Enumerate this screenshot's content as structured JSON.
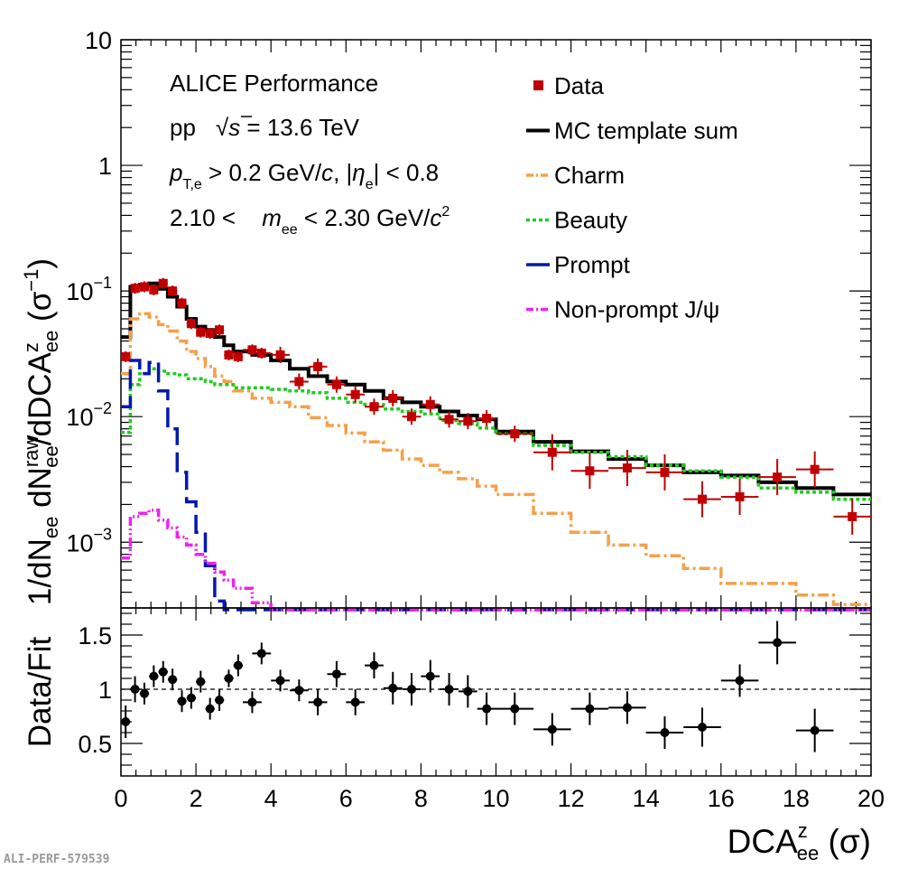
{
  "footer_label": "ALI-PERF-579539",
  "chart_data": [
    {
      "type": "histogram",
      "panel": "top",
      "yscale": "log",
      "xlim": [
        0,
        20
      ],
      "ylim": [
        0.0003,
        10
      ],
      "ylabel": {
        "base": "1/dN",
        "sub1": "ee",
        "mid": " dN",
        "sup2": "raw",
        "sub2": "ee",
        "tail": "/dDCA",
        "sup3": "z",
        "sub3": "ee",
        "unit": " (σ",
        "unit_sup": "−1",
        "unit_end": ")"
      },
      "yticks": [
        {
          "v": 10,
          "base": "10",
          "sup": ""
        },
        {
          "v": 1,
          "base": "1",
          "sup": ""
        },
        {
          "v": 0.1,
          "base": "10",
          "sup": "−1"
        },
        {
          "v": 0.01,
          "base": "10",
          "sup": "−2"
        },
        {
          "v": 0.001,
          "base": "10",
          "sup": "−3"
        }
      ],
      "annotations": {
        "line1": "ALICE Performance",
        "line2": {
          "system": "pp",
          "sqrt": "√",
          "s": "s",
          "energy": " = 13.6 TeV"
        },
        "line3": {
          "p": "p",
          "sub": "T,e",
          "cut1": " > 0.2 GeV/",
          "c": "c",
          "cut2": ", |",
          "eta": "η",
          "eta_sub": "e",
          "cut3": "| < 0.8"
        },
        "line4": {
          "lo": "2.10 < ",
          "m": "m",
          "m_sub": "ee",
          "hi": " < 2.30 GeV/",
          "c": "c",
          "c_sup": "2"
        }
      },
      "legend_position": "top-right",
      "series": [
        {
          "name": "Data",
          "style": "markers",
          "color": "#c00000",
          "points": [
            [
              0.125,
              0.125,
              0.03
            ],
            [
              0.375,
              0.125,
              0.105
            ],
            [
              0.625,
              0.125,
              0.108
            ],
            [
              0.875,
              0.125,
              0.102
            ],
            [
              1.125,
              0.125,
              0.115
            ],
            [
              1.375,
              0.125,
              0.1
            ],
            [
              1.625,
              0.125,
              0.08
            ],
            [
              1.875,
              0.125,
              0.055
            ],
            [
              2.125,
              0.125,
              0.047
            ],
            [
              2.375,
              0.125,
              0.046
            ],
            [
              2.625,
              0.125,
              0.049
            ],
            [
              2.875,
              0.125,
              0.031
            ],
            [
              3.125,
              0.125,
              0.03
            ],
            [
              3.5,
              0.25,
              0.034
            ],
            [
              3.75,
              0.25,
              0.032
            ],
            [
              4.25,
              0.25,
              0.031
            ],
            [
              4.75,
              0.25,
              0.019
            ],
            [
              5.25,
              0.25,
              0.025
            ],
            [
              5.75,
              0.25,
              0.018
            ],
            [
              6.25,
              0.25,
              0.015
            ],
            [
              6.75,
              0.25,
              0.012
            ],
            [
              7.25,
              0.25,
              0.014
            ],
            [
              7.75,
              0.25,
              0.01
            ],
            [
              8.25,
              0.25,
              0.0125
            ],
            [
              8.75,
              0.25,
              0.0095
            ],
            [
              9.25,
              0.25,
              0.0092
            ],
            [
              9.75,
              0.25,
              0.0097
            ],
            [
              10.5,
              0.5,
              0.0073
            ],
            [
              11.5,
              0.5,
              0.0052
            ],
            [
              12.5,
              0.5,
              0.0037
            ],
            [
              13.5,
              0.5,
              0.0039
            ],
            [
              14.5,
              0.5,
              0.0036
            ],
            [
              15.5,
              0.5,
              0.0022
            ],
            [
              16.5,
              0.5,
              0.0023
            ],
            [
              17.5,
              0.5,
              0.0033
            ],
            [
              18.5,
              0.5,
              0.0038
            ],
            [
              19.5,
              0.5,
              0.0016
            ]
          ]
        },
        {
          "name": "MC template sum",
          "style": "solid",
          "color": "#000000",
          "x": [
            0,
            0.25,
            0.5,
            0.75,
            1,
            1.25,
            1.5,
            1.75,
            2,
            2.25,
            2.5,
            2.75,
            3,
            3.5,
            4,
            4.5,
            5,
            5.5,
            6,
            6.5,
            7,
            7.5,
            8,
            8.5,
            9,
            9.5,
            10,
            11,
            12,
            13,
            14,
            15,
            16,
            17,
            18,
            19,
            20
          ],
          "y": [
            0.043,
            0.108,
            0.112,
            0.115,
            0.104,
            0.09,
            0.075,
            0.06,
            0.052,
            0.049,
            0.043,
            0.037,
            0.033,
            0.031,
            0.028,
            0.024,
            0.021,
            0.019,
            0.018,
            0.016,
            0.014,
            0.013,
            0.012,
            0.011,
            0.0102,
            0.0095,
            0.0076,
            0.0063,
            0.0053,
            0.0046,
            0.0041,
            0.0036,
            0.0034,
            0.003,
            0.0027,
            0.0024
          ]
        },
        {
          "name": "Charm",
          "style": "dashdot",
          "color": "#f5a04a",
          "x": [
            0,
            0.25,
            0.5,
            0.75,
            1,
            1.25,
            1.5,
            1.75,
            2,
            2.25,
            2.5,
            2.75,
            3,
            3.5,
            4,
            4.5,
            5,
            5.5,
            6,
            6.5,
            7,
            7.5,
            8,
            8.5,
            9,
            9.5,
            10,
            11,
            12,
            13,
            14,
            15,
            16,
            17,
            18,
            19,
            20
          ],
          "y": [
            0.022,
            0.06,
            0.066,
            0.062,
            0.054,
            0.048,
            0.04,
            0.033,
            0.029,
            0.025,
            0.021,
            0.019,
            0.016,
            0.014,
            0.013,
            0.012,
            0.0098,
            0.0085,
            0.0074,
            0.0063,
            0.0054,
            0.0046,
            0.0041,
            0.0036,
            0.0032,
            0.0028,
            0.0024,
            0.0017,
            0.0012,
            0.00095,
            0.00078,
            0.00062,
            0.00047,
            0.00047,
            0.00038,
            0.00032
          ]
        },
        {
          "name": "Beauty",
          "style": "dotted",
          "color": "#22cc22",
          "x": [
            0,
            0.25,
            0.5,
            0.75,
            1,
            1.25,
            1.5,
            1.75,
            2,
            2.25,
            2.5,
            2.75,
            3,
            3.5,
            4,
            4.5,
            5,
            5.5,
            6,
            6.5,
            7,
            7.5,
            8,
            8.5,
            9,
            9.5,
            10,
            11,
            12,
            13,
            14,
            15,
            16,
            17,
            18,
            19,
            20
          ],
          "y": [
            0.0075,
            0.018,
            0.022,
            0.024,
            0.023,
            0.022,
            0.0215,
            0.02,
            0.02,
            0.019,
            0.018,
            0.018,
            0.017,
            0.017,
            0.0165,
            0.016,
            0.0155,
            0.014,
            0.013,
            0.0125,
            0.0115,
            0.011,
            0.0105,
            0.0093,
            0.0088,
            0.0081,
            0.0073,
            0.0059,
            0.0052,
            0.0048,
            0.0041,
            0.0037,
            0.0033,
            0.0027,
            0.0025,
            0.0022
          ]
        },
        {
          "name": "Prompt",
          "style": "longdash",
          "color": "#0018b0",
          "x": [
            0,
            0.25,
            0.5,
            0.75,
            1,
            1.25,
            1.5,
            1.75,
            2,
            2.25,
            2.5,
            2.75,
            20
          ],
          "y": [
            0.012,
            0.028,
            0.022,
            0.027,
            0.016,
            0.008,
            0.0036,
            0.0021,
            0.0012,
            0.00065,
            0.00034,
            0.00029
          ]
        },
        {
          "name": "Non-prompt J/ψ",
          "style": "dashdotdot",
          "color": "#ee22ee",
          "x": [
            0,
            0.25,
            0.5,
            0.75,
            1,
            1.25,
            1.5,
            1.75,
            2,
            2.25,
            2.5,
            2.75,
            3,
            3.5,
            4,
            20
          ],
          "y": [
            0.00075,
            0.0016,
            0.0017,
            0.0018,
            0.0015,
            0.0013,
            0.0011,
            0.00095,
            0.0008,
            0.00068,
            0.00058,
            0.0005,
            0.00043,
            0.00033,
            0.00029
          ]
        }
      ]
    },
    {
      "type": "scatter",
      "panel": "bottom",
      "xlabel": {
        "base": "DCA",
        "sup": "z",
        "sub": "ee",
        "unit": " (σ)"
      },
      "ylabel": "Data/Fit",
      "xlim": [
        0,
        20
      ],
      "ylim": [
        0.2,
        1.75
      ],
      "xticks": [
        0,
        2,
        4,
        6,
        8,
        10,
        12,
        14,
        16,
        18,
        20
      ],
      "yticks": [
        0.5,
        1,
        1.5
      ],
      "reference_line": 1,
      "points": [
        [
          0.125,
          0.125,
          0.7,
          0.15
        ],
        [
          0.375,
          0.125,
          1.0,
          0.12
        ],
        [
          0.625,
          0.125,
          0.96,
          0.1
        ],
        [
          0.875,
          0.125,
          1.12,
          0.1
        ],
        [
          1.125,
          0.125,
          1.16,
          0.1
        ],
        [
          1.375,
          0.125,
          1.09,
          0.1
        ],
        [
          1.625,
          0.125,
          0.89,
          0.1
        ],
        [
          1.875,
          0.125,
          0.92,
          0.1
        ],
        [
          2.125,
          0.125,
          1.07,
          0.1
        ],
        [
          2.375,
          0.125,
          0.82,
          0.1
        ],
        [
          2.625,
          0.125,
          0.9,
          0.1
        ],
        [
          2.875,
          0.125,
          1.1,
          0.08
        ],
        [
          3.125,
          0.125,
          1.22,
          0.1
        ],
        [
          3.5,
          0.25,
          0.88,
          0.1
        ],
        [
          3.75,
          0.25,
          1.33,
          0.1
        ],
        [
          4.25,
          0.25,
          1.08,
          0.1
        ],
        [
          4.75,
          0.25,
          0.99,
          0.1
        ],
        [
          5.25,
          0.25,
          0.88,
          0.12
        ],
        [
          5.75,
          0.25,
          1.14,
          0.12
        ],
        [
          6.25,
          0.25,
          0.88,
          0.12
        ],
        [
          6.75,
          0.25,
          1.22,
          0.12
        ],
        [
          7.25,
          0.25,
          1.01,
          0.15
        ],
        [
          7.75,
          0.25,
          1.0,
          0.15
        ],
        [
          8.25,
          0.25,
          1.12,
          0.15
        ],
        [
          8.75,
          0.25,
          1.0,
          0.15
        ],
        [
          9.25,
          0.25,
          0.98,
          0.15
        ],
        [
          9.75,
          0.25,
          0.82,
          0.15
        ],
        [
          10.5,
          0.5,
          0.82,
          0.15
        ],
        [
          11.5,
          0.5,
          0.63,
          0.15
        ],
        [
          12.5,
          0.5,
          0.82,
          0.15
        ],
        [
          13.5,
          0.5,
          0.83,
          0.15
        ],
        [
          14.5,
          0.5,
          0.6,
          0.15
        ],
        [
          15.5,
          0.5,
          0.65,
          0.18
        ],
        [
          16.5,
          0.5,
          1.08,
          0.15
        ],
        [
          17.5,
          0.5,
          1.43,
          0.2
        ],
        [
          18.5,
          0.5,
          0.62,
          0.2
        ]
      ]
    }
  ]
}
